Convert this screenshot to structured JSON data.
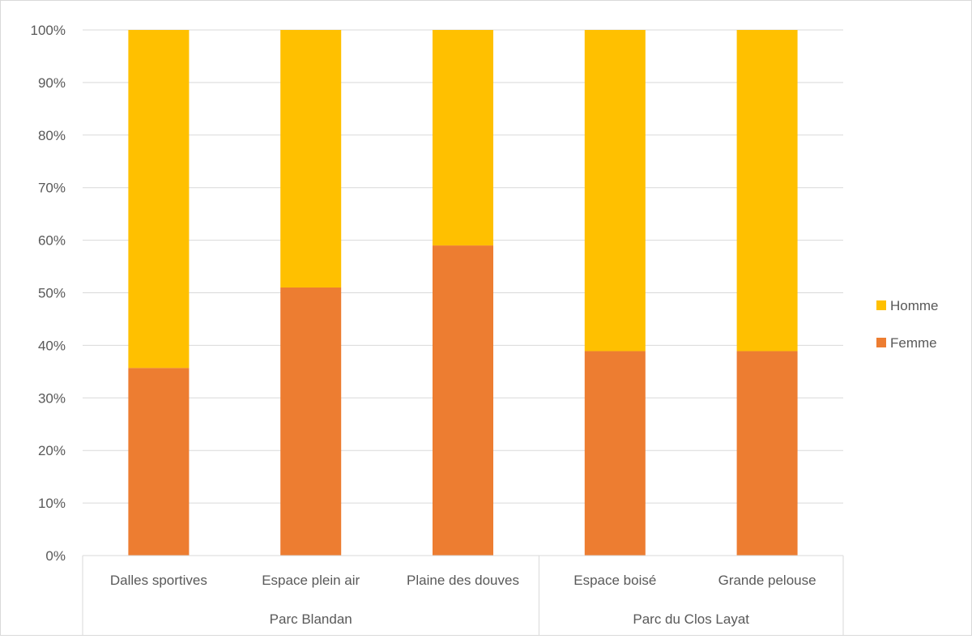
{
  "chart_data": {
    "type": "bar",
    "stacked": true,
    "percent": true,
    "categories": [
      "Dalles sportives",
      "Espace plein air",
      "Plaine des douves",
      "Espace boisé",
      "Grande pelouse"
    ],
    "groups": [
      {
        "label": "Parc Blandan",
        "categories": [
          "Dalles sportives",
          "Espace plein air",
          "Plaine des douves"
        ]
      },
      {
        "label": "Parc du Clos Layat",
        "categories": [
          "Espace boisé",
          "Grande pelouse"
        ]
      }
    ],
    "series": [
      {
        "name": "Femme",
        "color": "#ED7D31",
        "values": [
          35.7,
          51.0,
          59.0,
          38.9,
          38.9
        ]
      },
      {
        "name": "Homme",
        "color": "#FFC000",
        "values": [
          64.3,
          49.0,
          41.0,
          61.1,
          61.1
        ]
      }
    ],
    "legend_order": [
      "Homme",
      "Femme"
    ],
    "y_ticks": [
      "0%",
      "10%",
      "20%",
      "30%",
      "40%",
      "50%",
      "60%",
      "70%",
      "80%",
      "90%",
      "100%"
    ],
    "ylim": [
      0,
      100
    ],
    "grid": true,
    "legend_position": "right",
    "title": "",
    "xlabel": "",
    "ylabel": ""
  }
}
